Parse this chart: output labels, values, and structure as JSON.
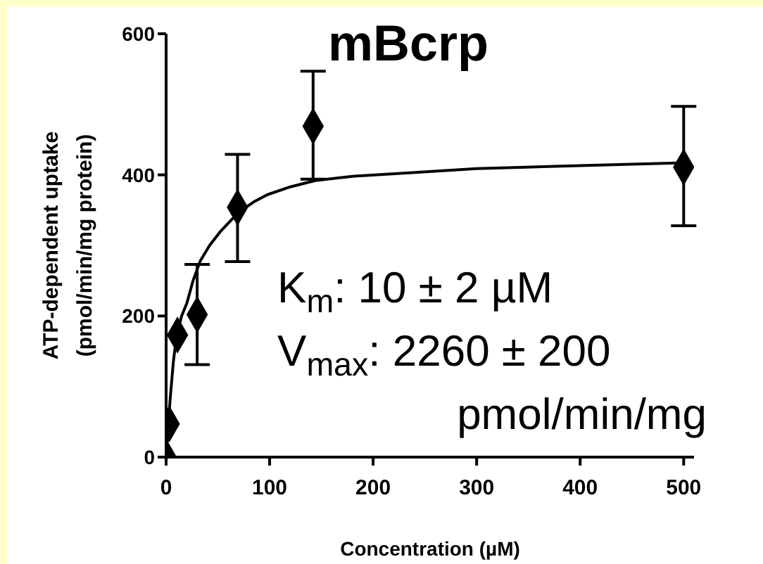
{
  "chart_data": {
    "type": "scatter",
    "title": "mBcrp",
    "xlabel": "Concentration (µM)",
    "ylabel": "ATP-dependent uptake\n(pmol/min/mg protein)",
    "annotations": [
      "K$_{m}$: 10 ± 2 µM",
      "V$_{max}$: 2260 ± 200\npmol/min/mg"
    ],
    "xlim": [
      0,
      510
    ],
    "xticks": [
      0,
      100,
      200,
      300,
      400,
      500
    ],
    "ylim": [
      0,
      600
    ],
    "yticks": [
      0,
      200,
      400,
      600
    ],
    "grid": false,
    "legend": false,
    "marker": "diamond",
    "series": [
      {
        "color": "#000000",
        "x": [
          0,
          3,
          11,
          30,
          69,
          142,
          500
        ],
        "values": [
          0,
          47,
          173,
          202,
          354,
          469,
          411
        ],
        "errors": [
          null,
          null,
          null,
          [
            131,
            273
          ],
          [
            277,
            429
          ],
          [
            394,
            547
          ],
          [
            328,
            497
          ]
        ]
      },
      {
        "type": "line",
        "color": "#000000",
        "marker": "none",
        "line_style": "solid",
        "x": [
          0,
          1,
          4,
          7,
          10,
          15,
          20,
          26,
          33,
          42,
          52,
          70,
          85,
          98,
          120,
          144,
          180,
          235,
          300,
          400,
          500
        ],
        "values": [
          0,
          25,
          84,
          135,
          171,
          200,
          218,
          250,
          278,
          300,
          319,
          347,
          362,
          372,
          383,
          392,
          398,
          403,
          409,
          413,
          417
        ]
      }
    ]
  }
}
